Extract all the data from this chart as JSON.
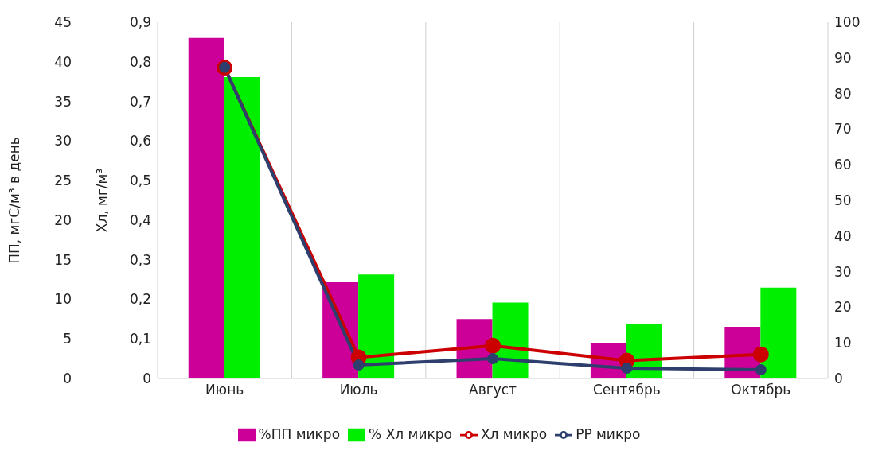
{
  "chart_data": {
    "type": "bar",
    "categories": [
      "Июнь",
      "Июль",
      "Август",
      "Сентябрь",
      "Октябрь"
    ],
    "ylabel": "ПП, мгС/м³ в день",
    "ylim": [
      0,
      45
    ],
    "yticks": [
      0,
      5,
      10,
      15,
      20,
      25,
      30,
      35,
      40,
      45
    ],
    "y2label": "Хл, мг/м³",
    "y2lim": [
      0,
      0.9
    ],
    "y2ticks": [
      {
        "value": 0,
        "label": "0"
      },
      {
        "value": 0.1,
        "label": "0,1"
      },
      {
        "value": 0.2,
        "label": "0,2"
      },
      {
        "value": 0.3,
        "label": "0,3"
      },
      {
        "value": 0.4,
        "label": "0,4"
      },
      {
        "value": 0.5,
        "label": "0,5"
      },
      {
        "value": 0.6,
        "label": "0,6"
      },
      {
        "value": 0.7,
        "label": "0,7"
      },
      {
        "value": 0.8,
        "label": "0,8"
      },
      {
        "value": 0.9,
        "label": "0,9"
      }
    ],
    "y3lim": [
      0,
      100
    ],
    "y3ticks": [
      0,
      10,
      20,
      30,
      40,
      50,
      60,
      70,
      80,
      90,
      100
    ],
    "series": [
      {
        "name": "%ПП микро",
        "axis": "y3",
        "color": "#cc0099",
        "values": [
          95.6,
          27,
          16.7,
          9.9,
          14.5
        ]
      },
      {
        "name": "% Хл микро",
        "axis": "y3",
        "color": "#00ee00",
        "values": [
          84.6,
          29.2,
          21.3,
          15.4,
          25.5
        ]
      },
      {
        "name": "Хл микро",
        "type": "line",
        "axis": "y2",
        "color": "#cc0000",
        "values": [
          0.785,
          0.053,
          0.083,
          0.045,
          0.061
        ]
      },
      {
        "name": "РР микро",
        "type": "line",
        "axis": "y",
        "color": "#2e3f6e",
        "values": [
          39.3,
          1.7,
          2.5,
          1.3,
          1.1
        ]
      }
    ],
    "grid": "x",
    "legend": "bottom",
    "marker": "circle"
  }
}
